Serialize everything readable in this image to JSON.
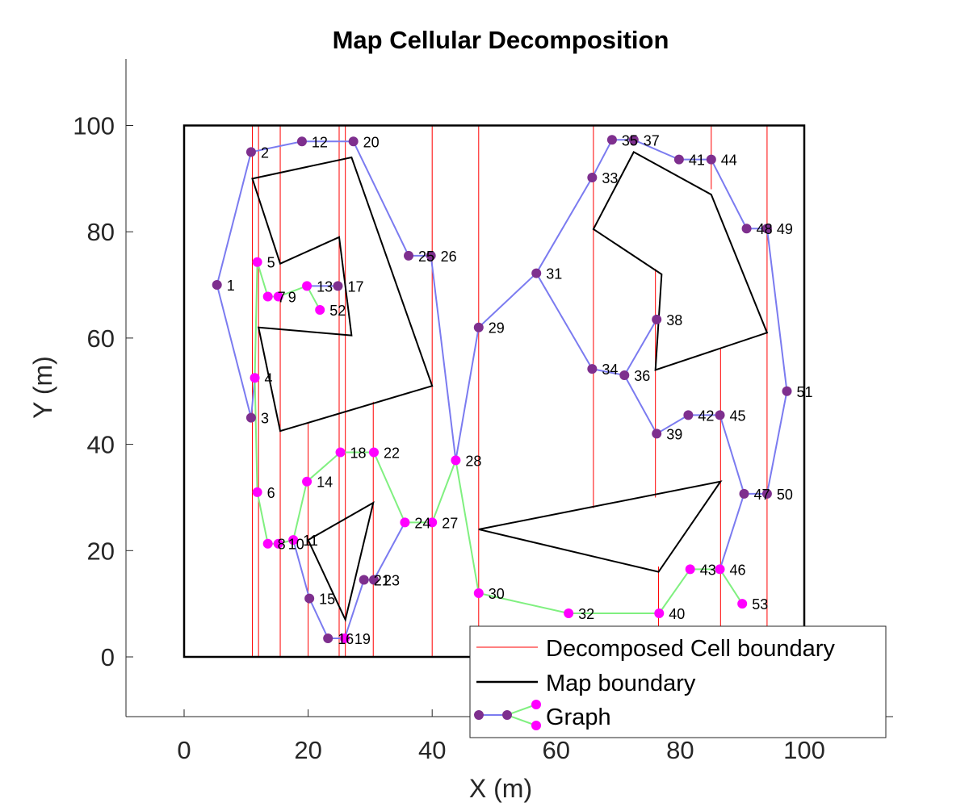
{
  "chart_data": {
    "type": "scatter",
    "title": "Map Cellular Decomposition",
    "xlabel": "X (m)",
    "ylabel": "Y (m)",
    "xlim": [
      -10,
      112
    ],
    "ylim": [
      -11,
      112
    ],
    "xticks": [
      0,
      20,
      40,
      60,
      80,
      100
    ],
    "yticks": [
      0,
      20,
      40,
      60,
      80,
      100
    ],
    "grid": false,
    "legend": {
      "placement": "bottom-right",
      "entries": [
        "Decomposed Cell boundary",
        "Map boundary",
        "Graph"
      ]
    },
    "colors": {
      "cell_boundary": "#ff0000",
      "map_boundary": "#000000",
      "graph_edge_blue": "#7b7bf0",
      "graph_edge_green": "#80f080",
      "node_purple": "#7e2f8e",
      "node_magenta": "#ff00ff"
    },
    "cell_boundaries": [
      {
        "x": 11,
        "y": [
          0,
          100
        ]
      },
      {
        "x": 12,
        "y": [
          0,
          100
        ]
      },
      {
        "x": 15.5,
        "y": [
          0,
          100
        ]
      },
      {
        "x": 20,
        "y": [
          0,
          44
        ]
      },
      {
        "x": 25,
        "y": [
          0,
          100
        ]
      },
      {
        "x": 26,
        "y": [
          0,
          100
        ]
      },
      {
        "x": 30.5,
        "y": [
          0,
          48
        ]
      },
      {
        "x": 40,
        "y": [
          0,
          100
        ]
      },
      {
        "x": 47.5,
        "y": [
          0,
          100
        ]
      },
      {
        "x": 66,
        "y": [
          28,
          100
        ]
      },
      {
        "x": 76,
        "y": [
          30,
          73
        ]
      },
      {
        "x": 76.5,
        "y": [
          0,
          17
        ]
      },
      {
        "x": 85,
        "y": [
          88,
          100
        ]
      },
      {
        "x": 86.5,
        "y": [
          0,
          58
        ]
      },
      {
        "x": 94,
        "y": [
          0,
          100
        ]
      }
    ],
    "map_boundary": [
      [
        0,
        0
      ],
      [
        100,
        0
      ],
      [
        100,
        100
      ],
      [
        0,
        100
      ]
    ],
    "obstacles": [
      [
        [
          11,
          90
        ],
        [
          27,
          94
        ],
        [
          40,
          51
        ],
        [
          15.5,
          42.5
        ],
        [
          12,
          62
        ],
        [
          27,
          60.5
        ],
        [
          25,
          79
        ],
        [
          15.5,
          74
        ]
      ],
      [
        [
          20,
          22
        ],
        [
          30.5,
          29
        ],
        [
          26,
          7
        ]
      ],
      [
        [
          47.5,
          24
        ],
        [
          86.5,
          33
        ],
        [
          76.5,
          16
        ]
      ],
      [
        [
          66,
          80.5
        ],
        [
          72.5,
          95
        ],
        [
          85,
          87
        ],
        [
          94,
          61
        ],
        [
          76,
          54
        ],
        [
          77,
          72
        ]
      ]
    ],
    "nodes": [
      {
        "id": 1,
        "x": 5.3,
        "y": 70,
        "color": "purple",
        "label": "1"
      },
      {
        "id": 2,
        "x": 10.8,
        "y": 95,
        "color": "purple",
        "label": "2"
      },
      {
        "id": 3,
        "x": 10.8,
        "y": 45,
        "color": "purple",
        "label": "3"
      },
      {
        "id": 4,
        "x": 11.4,
        "y": 52.5,
        "color": "magenta",
        "label": "4"
      },
      {
        "id": 5,
        "x": 11.8,
        "y": 74.3,
        "color": "magenta",
        "label": "5"
      },
      {
        "id": 6,
        "x": 11.8,
        "y": 31,
        "color": "magenta",
        "label": "6"
      },
      {
        "id": 7,
        "x": 13.5,
        "y": 67.8,
        "color": "magenta",
        "label": "7"
      },
      {
        "id": 8,
        "x": 13.5,
        "y": 21.3,
        "color": "magenta",
        "label": "8"
      },
      {
        "id": 9,
        "x": 15.2,
        "y": 67.8,
        "color": "magenta",
        "label": "9"
      },
      {
        "id": 10,
        "x": 15.2,
        "y": 21.3,
        "color": "magenta",
        "label": "10"
      },
      {
        "id": 11,
        "x": 17.6,
        "y": 22,
        "color": "magenta",
        "label": "11"
      },
      {
        "id": 12,
        "x": 19,
        "y": 97,
        "color": "purple",
        "label": "12"
      },
      {
        "id": 13,
        "x": 19.8,
        "y": 69.8,
        "color": "magenta",
        "label": "13"
      },
      {
        "id": 14,
        "x": 19.8,
        "y": 33,
        "color": "magenta",
        "label": "14"
      },
      {
        "id": 15,
        "x": 20.2,
        "y": 11,
        "color": "purple",
        "label": "15"
      },
      {
        "id": 16,
        "x": 23.2,
        "y": 3.5,
        "color": "purple",
        "label": "16"
      },
      {
        "id": 17,
        "x": 24.8,
        "y": 69.8,
        "color": "purple",
        "label": "17"
      },
      {
        "id": 18,
        "x": 25.2,
        "y": 38.5,
        "color": "magenta",
        "label": "18"
      },
      {
        "id": 19,
        "x": 25.9,
        "y": 3.5,
        "color": "magenta",
        "label": "19"
      },
      {
        "id": 20,
        "x": 27.3,
        "y": 97,
        "color": "purple",
        "label": "20"
      },
      {
        "id": 21,
        "x": 29,
        "y": 14.5,
        "color": "purple",
        "label": "21"
      },
      {
        "id": 22,
        "x": 30.6,
        "y": 38.5,
        "color": "magenta",
        "label": "22"
      },
      {
        "id": 23,
        "x": 30.6,
        "y": 14.5,
        "color": "purple",
        "label": "23"
      },
      {
        "id": 24,
        "x": 35.6,
        "y": 25.3,
        "color": "magenta",
        "label": "24"
      },
      {
        "id": 25,
        "x": 36.2,
        "y": 75.5,
        "color": "purple",
        "label": "25"
      },
      {
        "id": 26,
        "x": 39.8,
        "y": 75.5,
        "color": "purple",
        "label": "26"
      },
      {
        "id": 27,
        "x": 40,
        "y": 25.3,
        "color": "magenta",
        "label": "27"
      },
      {
        "id": 28,
        "x": 43.8,
        "y": 37,
        "color": "magenta",
        "label": "28"
      },
      {
        "id": 29,
        "x": 47.5,
        "y": 62,
        "color": "purple",
        "label": "29"
      },
      {
        "id": 30,
        "x": 47.5,
        "y": 12,
        "color": "magenta",
        "label": "30"
      },
      {
        "id": 31,
        "x": 56.8,
        "y": 72.2,
        "color": "purple",
        "label": "31"
      },
      {
        "id": 32,
        "x": 62,
        "y": 8.2,
        "color": "magenta",
        "label": "32"
      },
      {
        "id": 33,
        "x": 65.8,
        "y": 90.2,
        "color": "purple",
        "label": "33"
      },
      {
        "id": 34,
        "x": 65.8,
        "y": 54.2,
        "color": "purple",
        "label": "34"
      },
      {
        "id": 35,
        "x": 69,
        "y": 97.3,
        "color": "purple",
        "label": "35"
      },
      {
        "id": 36,
        "x": 71,
        "y": 53,
        "color": "purple",
        "label": "36"
      },
      {
        "id": 37,
        "x": 72.5,
        "y": 97.3,
        "color": "purple",
        "label": "37"
      },
      {
        "id": 38,
        "x": 76.2,
        "y": 63.5,
        "color": "purple",
        "label": "38"
      },
      {
        "id": 39,
        "x": 76.2,
        "y": 42,
        "color": "purple",
        "label": "39"
      },
      {
        "id": 40,
        "x": 76.6,
        "y": 8.2,
        "color": "magenta",
        "label": "40"
      },
      {
        "id": 41,
        "x": 79.8,
        "y": 93.6,
        "color": "purple",
        "label": "41"
      },
      {
        "id": 42,
        "x": 81.3,
        "y": 45.5,
        "color": "purple",
        "label": "42"
      },
      {
        "id": 43,
        "x": 81.6,
        "y": 16.5,
        "color": "magenta",
        "label": "43"
      },
      {
        "id": 44,
        "x": 85,
        "y": 93.6,
        "color": "purple",
        "label": "44"
      },
      {
        "id": 45,
        "x": 86.4,
        "y": 45.5,
        "color": "purple",
        "label": "45"
      },
      {
        "id": 46,
        "x": 86.4,
        "y": 16.5,
        "color": "magenta",
        "label": "46"
      },
      {
        "id": 47,
        "x": 90.3,
        "y": 30.7,
        "color": "purple",
        "label": "47"
      },
      {
        "id": 48,
        "x": 90.7,
        "y": 80.6,
        "color": "purple",
        "label": "48"
      },
      {
        "id": 49,
        "x": 94,
        "y": 80.6,
        "color": "purple",
        "label": "49"
      },
      {
        "id": 50,
        "x": 94,
        "y": 30.7,
        "color": "purple",
        "label": "50"
      },
      {
        "id": 51,
        "x": 97.2,
        "y": 50,
        "color": "purple",
        "label": "51"
      },
      {
        "id": 52,
        "x": 21.9,
        "y": 65.3,
        "color": "magenta",
        "label": "52"
      },
      {
        "id": 53,
        "x": 90,
        "y": 10,
        "color": "magenta",
        "label": "53"
      }
    ],
    "edges": [
      {
        "from": 1,
        "to": 2,
        "color": "blue"
      },
      {
        "from": 1,
        "to": 3,
        "color": "blue"
      },
      {
        "from": 2,
        "to": 12,
        "color": "blue"
      },
      {
        "from": 12,
        "to": 20,
        "color": "blue"
      },
      {
        "from": 20,
        "to": 25,
        "color": "blue"
      },
      {
        "from": 25,
        "to": 26,
        "color": "blue"
      },
      {
        "from": 26,
        "to": 28,
        "color": "blue"
      },
      {
        "from": 3,
        "to": 4,
        "color": "blue"
      },
      {
        "from": 4,
        "to": 5,
        "color": "green"
      },
      {
        "from": 5,
        "to": 7,
        "color": "green"
      },
      {
        "from": 7,
        "to": 9,
        "color": "green"
      },
      {
        "from": 9,
        "to": 13,
        "color": "green"
      },
      {
        "from": 13,
        "to": 17,
        "color": "blue"
      },
      {
        "from": 13,
        "to": 52,
        "color": "green"
      },
      {
        "from": 4,
        "to": 6,
        "color": "green"
      },
      {
        "from": 6,
        "to": 8,
        "color": "green"
      },
      {
        "from": 8,
        "to": 10,
        "color": "green"
      },
      {
        "from": 10,
        "to": 11,
        "color": "green"
      },
      {
        "from": 11,
        "to": 14,
        "color": "green"
      },
      {
        "from": 14,
        "to": 18,
        "color": "green"
      },
      {
        "from": 18,
        "to": 22,
        "color": "green"
      },
      {
        "from": 22,
        "to": 24,
        "color": "green"
      },
      {
        "from": 24,
        "to": 27,
        "color": "green"
      },
      {
        "from": 27,
        "to": 28,
        "color": "green"
      },
      {
        "from": 11,
        "to": 15,
        "color": "blue"
      },
      {
        "from": 15,
        "to": 16,
        "color": "blue"
      },
      {
        "from": 16,
        "to": 19,
        "color": "blue"
      },
      {
        "from": 19,
        "to": 21,
        "color": "blue"
      },
      {
        "from": 21,
        "to": 23,
        "color": "blue"
      },
      {
        "from": 23,
        "to": 24,
        "color": "blue"
      },
      {
        "from": 28,
        "to": 29,
        "color": "blue"
      },
      {
        "from": 28,
        "to": 30,
        "color": "green"
      },
      {
        "from": 29,
        "to": 31,
        "color": "blue"
      },
      {
        "from": 31,
        "to": 33,
        "color": "blue"
      },
      {
        "from": 31,
        "to": 34,
        "color": "blue"
      },
      {
        "from": 33,
        "to": 35,
        "color": "blue"
      },
      {
        "from": 35,
        "to": 37,
        "color": "blue"
      },
      {
        "from": 37,
        "to": 41,
        "color": "blue"
      },
      {
        "from": 41,
        "to": 44,
        "color": "blue"
      },
      {
        "from": 44,
        "to": 48,
        "color": "blue"
      },
      {
        "from": 48,
        "to": 49,
        "color": "blue"
      },
      {
        "from": 49,
        "to": 51,
        "color": "blue"
      },
      {
        "from": 51,
        "to": 50,
        "color": "blue"
      },
      {
        "from": 50,
        "to": 47,
        "color": "blue"
      },
      {
        "from": 34,
        "to": 36,
        "color": "blue"
      },
      {
        "from": 36,
        "to": 38,
        "color": "blue"
      },
      {
        "from": 36,
        "to": 39,
        "color": "blue"
      },
      {
        "from": 39,
        "to": 42,
        "color": "blue"
      },
      {
        "from": 42,
        "to": 45,
        "color": "blue"
      },
      {
        "from": 45,
        "to": 47,
        "color": "blue"
      },
      {
        "from": 47,
        "to": 46,
        "color": "blue"
      },
      {
        "from": 30,
        "to": 32,
        "color": "green"
      },
      {
        "from": 32,
        "to": 40,
        "color": "green"
      },
      {
        "from": 40,
        "to": 43,
        "color": "green"
      },
      {
        "from": 43,
        "to": 46,
        "color": "green"
      },
      {
        "from": 46,
        "to": 53,
        "color": "green"
      }
    ]
  }
}
